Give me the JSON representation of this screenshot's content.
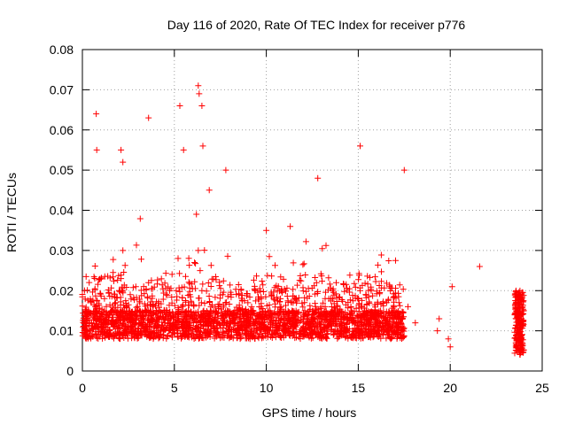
{
  "chart_data": {
    "type": "scatter",
    "title": "Day 116 of 2020, Rate Of TEC Index for receiver p776",
    "xlabel": "GPS time / hours",
    "ylabel": "ROTI / TECUs",
    "xlim": [
      0,
      25
    ],
    "ylim": [
      0,
      0.08
    ],
    "x_ticks": [
      "0",
      "5",
      "10",
      "15",
      "20",
      "25"
    ],
    "y_ticks": [
      "0",
      "0.01",
      "0.02",
      "0.03",
      "0.04",
      "0.05",
      "0.06",
      "0.07",
      "0.08"
    ],
    "grid": true,
    "marker": "+",
    "color": "#ff0000",
    "series": [
      {
        "x": [
          0.1,
          0.3,
          0.5,
          0.7,
          0.8,
          1.0,
          1.2,
          1.4,
          1.6,
          1.8,
          2.0,
          2.1,
          2.2,
          2.4,
          2.6,
          2.8,
          3.0,
          3.2,
          3.4,
          3.6,
          3.7,
          3.9,
          4.1,
          4.3,
          4.5,
          4.7,
          4.9,
          5.1,
          5.2,
          5.4,
          5.6,
          5.8,
          6.0,
          6.1,
          6.2,
          6.3,
          6.4,
          6.5,
          6.6,
          6.8,
          7.0,
          7.2,
          7.4,
          7.6,
          7.8,
          8.0,
          8.2,
          8.4,
          8.6,
          8.8,
          9.0,
          9.2,
          9.4,
          9.6,
          9.8,
          10.0,
          10.2,
          10.4,
          10.6,
          10.8,
          11.0,
          11.2,
          11.4,
          11.6,
          11.8,
          12.0,
          12.2,
          12.4,
          12.6,
          12.8,
          13.0,
          13.2,
          13.4,
          13.6,
          13.8,
          14.0,
          14.2,
          14.4,
          14.6,
          14.8,
          15.0,
          15.1,
          15.2,
          15.4,
          15.6,
          15.8,
          16.0,
          16.2,
          16.4,
          16.6,
          16.8,
          17.0,
          17.2,
          17.4,
          17.7,
          18.1,
          19.3,
          19.4,
          19.9,
          20.0,
          20.1,
          21.6,
          23.6,
          23.7,
          23.8,
          23.9,
          0.75,
          0.78,
          2.1,
          2.2,
          3.6,
          5.3,
          5.5,
          6.3,
          6.35,
          6.5,
          6.55,
          6.9,
          7.8,
          10.0,
          11.3,
          12.8,
          15.1,
          17.5
        ],
        "y": [
          0.01,
          0.014,
          0.012,
          0.016,
          0.011,
          0.013,
          0.018,
          0.012,
          0.015,
          0.017,
          0.02,
          0.023,
          0.03,
          0.016,
          0.019,
          0.014,
          0.016,
          0.013,
          0.015,
          0.022,
          0.012,
          0.01,
          0.013,
          0.011,
          0.012,
          0.01,
          0.011,
          0.02,
          0.028,
          0.016,
          0.012,
          0.01,
          0.013,
          0.027,
          0.039,
          0.03,
          0.025,
          0.02,
          0.015,
          0.012,
          0.01,
          0.013,
          0.016,
          0.012,
          0.014,
          0.011,
          0.012,
          0.01,
          0.011,
          0.013,
          0.012,
          0.016,
          0.02,
          0.014,
          0.012,
          0.011,
          0.015,
          0.018,
          0.02,
          0.016,
          0.012,
          0.013,
          0.015,
          0.011,
          0.012,
          0.01,
          0.012,
          0.011,
          0.013,
          0.012,
          0.014,
          0.016,
          0.018,
          0.02,
          0.022,
          0.015,
          0.012,
          0.014,
          0.016,
          0.012,
          0.018,
          0.02,
          0.016,
          0.014,
          0.012,
          0.011,
          0.013,
          0.012,
          0.01,
          0.013,
          0.011,
          0.015,
          0.012,
          0.01,
          0.016,
          0.012,
          0.01,
          0.013,
          0.008,
          0.006,
          0.021,
          0.026,
          0.015,
          0.012,
          0.008,
          0.018,
          0.064,
          0.055,
          0.055,
          0.052,
          0.063,
          0.066,
          0.055,
          0.071,
          0.069,
          0.066,
          0.056,
          0.045,
          0.05,
          0.035,
          0.036,
          0.048,
          0.056,
          0.05
        ],
        "cluster_note": null
      }
    ]
  }
}
